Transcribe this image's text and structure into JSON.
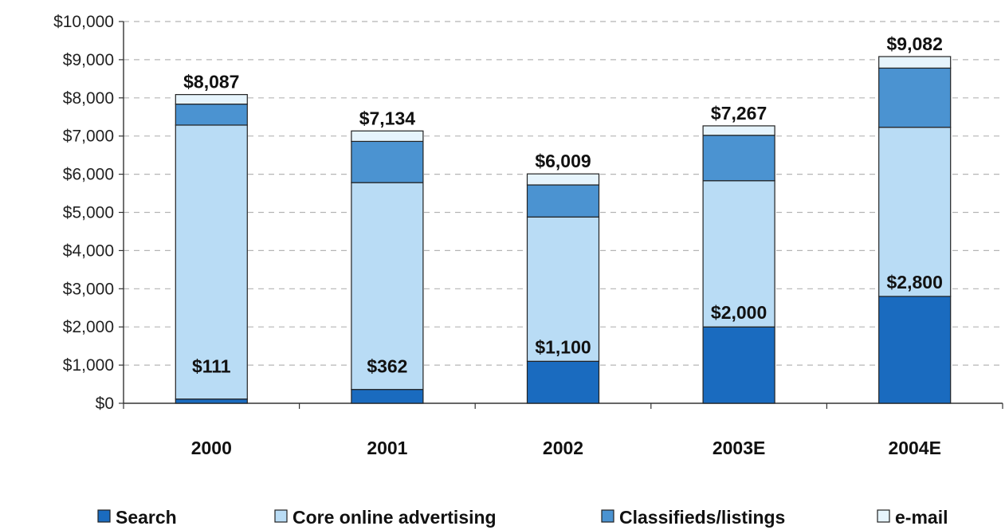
{
  "colors": {
    "search": "#1a6bbf",
    "core": "#b9dcf5",
    "classifieds": "#4b93d1",
    "email": "#e6f4fc"
  },
  "chart_data": {
    "type": "bar",
    "stacked": true,
    "categories": [
      "2000",
      "2001",
      "2002",
      "2003E",
      "2004E"
    ],
    "series": [
      {
        "name": "Search",
        "values": [
          111,
          362,
          1100,
          2000,
          2800
        ]
      },
      {
        "name": "Core online advertising",
        "values": [
          7176,
          5418,
          3780,
          3830,
          4430
        ]
      },
      {
        "name": "Classifieds/listings",
        "values": [
          550,
          1080,
          840,
          1190,
          1550
        ]
      },
      {
        "name": "e-mail",
        "values": [
          250,
          274,
          289,
          247,
          302
        ]
      }
    ],
    "totals": [
      "$8,087",
      "$7,134",
      "$6,009",
      "$7,267",
      "$9,082"
    ],
    "search_labels": [
      "$111",
      "$362",
      "$1,100",
      "$2,000",
      "$2,800"
    ],
    "ylim": [
      0,
      10000
    ],
    "yticks": [
      0,
      1000,
      2000,
      3000,
      4000,
      5000,
      6000,
      7000,
      8000,
      9000,
      10000
    ],
    "ytick_labels": [
      "$0",
      "$1,000",
      "$2,000",
      "$3,000",
      "$4,000",
      "$5,000",
      "$6,000",
      "$7,000",
      "$8,000",
      "$9,000",
      "$10,000"
    ],
    "grid": true,
    "legend_position": "bottom",
    "title": "",
    "xlabel": "",
    "ylabel": ""
  }
}
